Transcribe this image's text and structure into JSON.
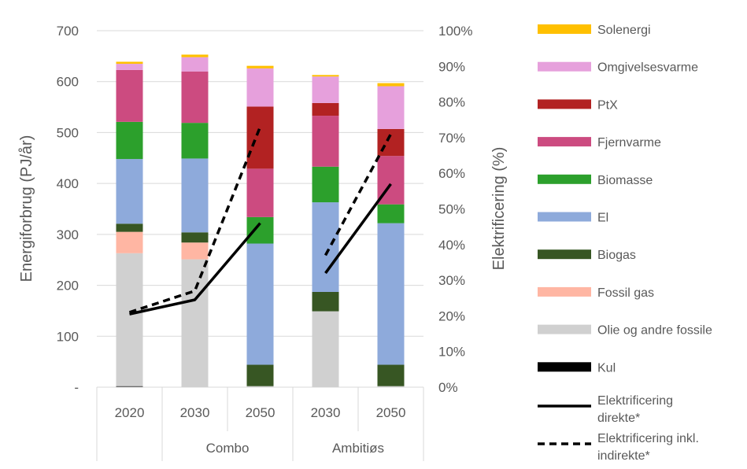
{
  "chart_data": {
    "type": "bar",
    "stacked": true,
    "categories": [
      "2020",
      "2030",
      "2050",
      "2030",
      "2050"
    ],
    "groups": [
      {
        "label": "",
        "categories": [
          "2020"
        ]
      },
      {
        "label": "Combo",
        "categories": [
          "2030",
          "2050"
        ]
      },
      {
        "label": "Ambitiøs",
        "categories": [
          "2030",
          "2050"
        ]
      }
    ],
    "ylabel": "Energiforbrug (PJ/år)",
    "ylim": [
      0,
      700
    ],
    "yticks": [
      "-",
      "100",
      "200",
      "300",
      "400",
      "500",
      "600",
      "700"
    ],
    "y2label": "Elektrificering (%)",
    "y2lim": [
      0,
      100
    ],
    "y2ticks": [
      "0%",
      "10%",
      "20%",
      "30%",
      "40%",
      "50%",
      "60%",
      "70%",
      "80%",
      "90%",
      "100%"
    ],
    "grid": true,
    "legend_position": "right",
    "series": [
      {
        "name": "Kul",
        "color": "#000000",
        "values": [
          2,
          1,
          1,
          1,
          1
        ]
      },
      {
        "name": "Olie og andre fossile",
        "color": "#d0d0d0",
        "values": [
          261,
          250,
          1,
          148,
          1
        ]
      },
      {
        "name": "Fossil gas",
        "color": "#ffb6a3",
        "values": [
          42,
          33,
          0,
          0,
          0
        ]
      },
      {
        "name": "Biogas",
        "color": "#375623",
        "values": [
          16,
          20,
          42,
          38,
          42
        ]
      },
      {
        "name": "El",
        "color": "#8eaadb",
        "values": [
          127,
          145,
          238,
          176,
          278
        ]
      },
      {
        "name": "Biomasse",
        "color": "#2ca02c",
        "values": [
          73,
          70,
          52,
          70,
          37
        ]
      },
      {
        "name": "Fjernvarme",
        "color": "#cc4b80",
        "values": [
          102,
          101,
          95,
          100,
          95
        ]
      },
      {
        "name": "PtX",
        "color": "#b22222",
        "values": [
          0,
          0,
          122,
          25,
          53
        ]
      },
      {
        "name": "Omgivelsesvarme",
        "color": "#e6a0dc",
        "values": [
          12,
          28,
          75,
          52,
          84
        ]
      },
      {
        "name": "Solenergi",
        "color": "#ffc000",
        "values": [
          4,
          5,
          5,
          3,
          6
        ]
      }
    ],
    "lines": [
      {
        "name": "Elektrificering direkte*",
        "style": "solid",
        "color": "#000000",
        "segments": [
          {
            "x": [
              0,
              1,
              2
            ],
            "y": [
              20.5,
              24.5,
              46
            ]
          },
          {
            "x": [
              3,
              4
            ],
            "y": [
              32,
              57
            ]
          }
        ]
      },
      {
        "name": "Elektrificering inkl. indirekte*",
        "style": "dashed",
        "color": "#000000",
        "segments": [
          {
            "x": [
              0,
              1,
              2
            ],
            "y": [
              21,
              27,
              73
            ]
          },
          {
            "x": [
              3,
              4
            ],
            "y": [
              37,
              71
            ]
          }
        ]
      }
    ]
  },
  "legend": {
    "bar_items": [
      "Solenergi",
      "Omgivelsesvarme",
      "PtX",
      "Fjernvarme",
      "Biomasse",
      "El",
      "Biogas",
      "Fossil gas",
      "Olie og andre fossile",
      "Kul"
    ],
    "line_items": [
      {
        "lines": [
          "Elektrificering",
          "direkte*"
        ],
        "style": "solid"
      },
      {
        "lines": [
          "Elektrificering inkl.",
          "indirekte*"
        ],
        "style": "dashed"
      }
    ]
  }
}
